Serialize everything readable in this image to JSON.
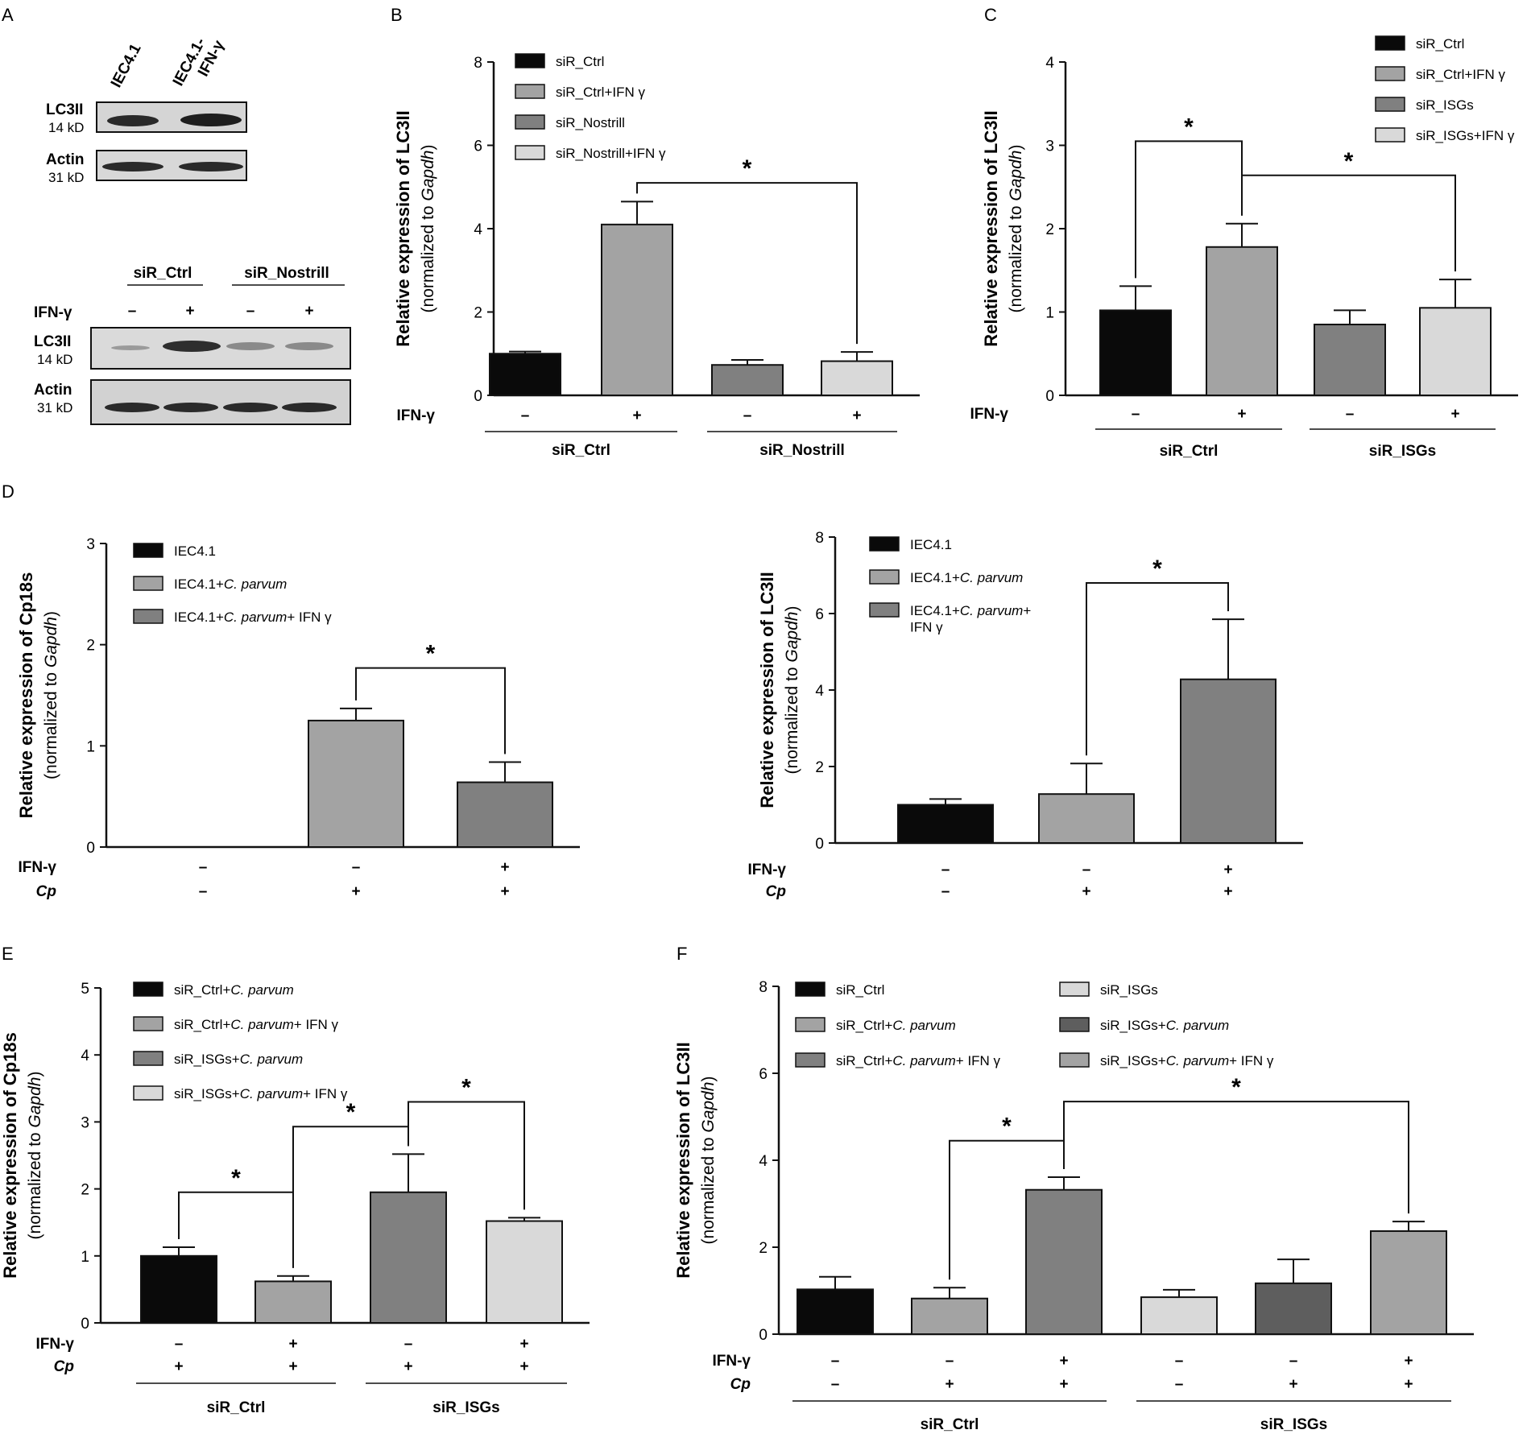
{
  "panel_labels": [
    "A",
    "B",
    "C",
    "D",
    "E",
    "F"
  ],
  "blot_top": {
    "lanes": [
      "IEC4.1",
      "IEC4.1-\nIFN-γ"
    ],
    "rows": [
      {
        "name": "LC3II",
        "size": "14 kD"
      },
      {
        "name": "Actin",
        "size": "31 kD"
      }
    ]
  },
  "blot_bottom": {
    "groups": [
      "siR_Ctrl",
      "siR_Nostrill"
    ],
    "treatment_label": "IFN-γ",
    "treatment": [
      "–",
      "+",
      "–",
      "+"
    ],
    "rows": [
      {
        "name": "LC3II",
        "size": "14 kD"
      },
      {
        "name": "Actin",
        "size": "31 kD"
      }
    ]
  },
  "colors": {
    "black": "#0a0a0a",
    "mid_gray": "#a3a3a3",
    "dark_gray": "#808080",
    "light_gray": "#d9d9d9",
    "darker_gray": "#5e5e5e"
  },
  "chart_data": [
    {
      "id": "B",
      "type": "bar",
      "ylabel": "Relative expression of LC3II",
      "ylabel2_prefix": "(normalized to ",
      "ylabel2_italic": "Gapdh",
      "ylabel2_suffix": ")",
      "ylim": [
        0,
        8
      ],
      "yticks": [
        "0",
        "2",
        "4",
        "6",
        "8"
      ],
      "series": [
        {
          "name": "siR_Ctrl",
          "value": 1.0,
          "error": 0.05,
          "color": "#0a0a0a"
        },
        {
          "name": "siR_Ctrl+IFN γ",
          "value": 4.1,
          "error": 0.55,
          "color": "#a3a3a3"
        },
        {
          "name": "siR_Nostrill",
          "value": 0.73,
          "error": 0.12,
          "color": "#808080"
        },
        {
          "name": "siR_Nostrill+IFN γ",
          "value": 0.82,
          "error": 0.22,
          "color": "#d9d9d9"
        }
      ],
      "rows": [
        {
          "label": "IFN-γ",
          "values": [
            "–",
            "+",
            "–",
            "+"
          ]
        }
      ],
      "groups": [
        {
          "label": "siR_Ctrl",
          "bars": [
            0,
            1
          ]
        },
        {
          "label": "siR_Nostrill",
          "bars": [
            2,
            3
          ]
        }
      ],
      "significance": [
        {
          "from": 1,
          "to": 3,
          "level": 5.1,
          "label": "*"
        }
      ]
    },
    {
      "id": "C",
      "type": "bar",
      "ylabel": "Relative expression of LC3II",
      "ylabel2_prefix": "(normalized to ",
      "ylabel2_italic": "Gapdh",
      "ylabel2_suffix": ")",
      "ylim": [
        0,
        4
      ],
      "yticks": [
        "0",
        "1",
        "2",
        "3",
        "4"
      ],
      "series": [
        {
          "name": "siR_Ctrl",
          "value": 1.02,
          "error": 0.29,
          "color": "#0a0a0a"
        },
        {
          "name": "siR_Ctrl+IFN γ",
          "value": 1.78,
          "error": 0.28,
          "color": "#a3a3a3"
        },
        {
          "name": "siR_ISGs",
          "value": 0.85,
          "error": 0.17,
          "color": "#808080"
        },
        {
          "name": "siR_ISGs+IFN γ",
          "value": 1.05,
          "error": 0.34,
          "color": "#d9d9d9"
        }
      ],
      "rows": [
        {
          "label": "IFN-γ",
          "values": [
            "–",
            "+",
            "–",
            "+"
          ]
        }
      ],
      "groups": [
        {
          "label": "siR_Ctrl",
          "bars": [
            0,
            1
          ]
        },
        {
          "label": "siR_ISGs",
          "bars": [
            2,
            3
          ]
        }
      ],
      "significance": [
        {
          "from": 0,
          "to": 1,
          "level": 3.05,
          "label": "*"
        },
        {
          "from": 1,
          "to": 3,
          "level": 2.64,
          "label": "*"
        }
      ]
    },
    {
      "id": "D1",
      "type": "bar",
      "ylabel": "Relative expression of Cp18s",
      "ylabel2_prefix": "(normalized to ",
      "ylabel2_italic": "Gapdh",
      "ylabel2_suffix": ")",
      "ylim": [
        0,
        3
      ],
      "yticks": [
        "0",
        "1",
        "2",
        "3"
      ],
      "series": [
        {
          "name": "IEC4.1",
          "value": 0,
          "error": 0,
          "color": "#0a0a0a"
        },
        {
          "name": "IEC4.1+C. parvum",
          "value": 1.25,
          "error": 0.12,
          "color": "#a3a3a3"
        },
        {
          "name": "IEC4.1+C. parvum+ IFN γ",
          "value": 0.64,
          "error": 0.2,
          "color": "#808080"
        }
      ],
      "rows": [
        {
          "label": "IFN-γ",
          "values": [
            "–",
            "–",
            "+"
          ]
        },
        {
          "label": "Cp",
          "values": [
            "–",
            "+",
            "+"
          ]
        }
      ],
      "groups": [],
      "significance": [
        {
          "from": 1,
          "to": 2,
          "level": 1.77,
          "label": "*"
        }
      ]
    },
    {
      "id": "D2",
      "type": "bar",
      "ylabel": "Relative expression of LC3II",
      "ylabel2_prefix": "(normalized to ",
      "ylabel2_italic": "Gapdh",
      "ylabel2_suffix": ")",
      "ylim": [
        0,
        8
      ],
      "yticks": [
        "0",
        "2",
        "4",
        "6",
        "8"
      ],
      "series": [
        {
          "name": "IEC4.1",
          "value": 1.0,
          "error": 0.15,
          "color": "#0a0a0a"
        },
        {
          "name": "IEC4.1+C. parvum",
          "value": 1.28,
          "error": 0.8,
          "color": "#a3a3a3"
        },
        {
          "name": "IEC4.1+C. parvum+\nIFN γ",
          "value": 4.28,
          "error": 1.57,
          "color": "#808080"
        }
      ],
      "rows": [
        {
          "label": "IFN-γ",
          "values": [
            "–",
            "–",
            "+"
          ]
        },
        {
          "label": "Cp",
          "values": [
            "–",
            "+",
            "+"
          ]
        }
      ],
      "groups": [],
      "significance": [
        {
          "from": 1,
          "to": 2,
          "level": 6.8,
          "label": "*"
        }
      ]
    },
    {
      "id": "E",
      "type": "bar",
      "ylabel": "Relative expression of Cp18s",
      "ylabel2_prefix": "(normalized to ",
      "ylabel2_italic": "Gapdh",
      "ylabel2_suffix": ")",
      "ylim": [
        0,
        5
      ],
      "yticks": [
        "0",
        "1",
        "2",
        "3",
        "4",
        "5"
      ],
      "series": [
        {
          "name": "siR_Ctrl+C. parvum",
          "value": 1.0,
          "error": 0.13,
          "color": "#0a0a0a"
        },
        {
          "name": "siR_Ctrl+C. parvum+ IFN γ",
          "value": 0.62,
          "error": 0.08,
          "color": "#a3a3a3"
        },
        {
          "name": "siR_ISGs+C. parvum",
          "value": 1.95,
          "error": 0.57,
          "color": "#808080"
        },
        {
          "name": "siR_ISGs+C. parvum+ IFN γ",
          "value": 1.52,
          "error": 0.05,
          "color": "#d9d9d9"
        }
      ],
      "rows": [
        {
          "label": "IFN-γ",
          "values": [
            "–",
            "+",
            "–",
            "+"
          ]
        },
        {
          "label": "Cp",
          "values": [
            "+",
            "+",
            "+",
            "+"
          ]
        }
      ],
      "groups": [
        {
          "label": "siR_Ctrl",
          "bars": [
            0,
            1
          ]
        },
        {
          "label": "siR_ISGs",
          "bars": [
            2,
            3
          ]
        }
      ],
      "significance": [
        {
          "from": 0,
          "to": 1,
          "level": 1.95,
          "label": "*"
        },
        {
          "from": 1,
          "to": 2,
          "level": 2.93,
          "label": "*"
        },
        {
          "from": 2,
          "to": 3,
          "level": 3.3,
          "label": "*"
        }
      ]
    },
    {
      "id": "F",
      "type": "bar",
      "ylabel": "Relative expression of LC3II",
      "ylabel2_prefix": "(normalized to ",
      "ylabel2_italic": "Gapdh",
      "ylabel2_suffix": ")",
      "ylim": [
        0,
        8
      ],
      "yticks": [
        "0",
        "2",
        "4",
        "6",
        "8"
      ],
      "series": [
        {
          "name": "siR_Ctrl",
          "value": 1.03,
          "error": 0.29,
          "color": "#0a0a0a"
        },
        {
          "name": "siR_Ctrl+C. parvum",
          "value": 0.82,
          "error": 0.25,
          "color": "#a3a3a3"
        },
        {
          "name": "siR_Ctrl+C. parvum+ IFN γ",
          "value": 3.32,
          "error": 0.29,
          "color": "#808080"
        },
        {
          "name": "siR_ISGs",
          "value": 0.85,
          "error": 0.17,
          "color": "#d9d9d9"
        },
        {
          "name": "siR_ISGs+C. parvum",
          "value": 1.17,
          "error": 0.55,
          "color": "#5e5e5e"
        },
        {
          "name": "siR_ISGs+C. parvum+ IFN γ",
          "value": 2.37,
          "error": 0.22,
          "color": "#a3a3a3"
        }
      ],
      "rows": [
        {
          "label": "IFN-γ",
          "values": [
            "–",
            "–",
            "+",
            "–",
            "–",
            "+"
          ]
        },
        {
          "label": "Cp",
          "values": [
            "–",
            "+",
            "+",
            "–",
            "+",
            "+"
          ]
        }
      ],
      "groups": [
        {
          "label": "siR_Ctrl",
          "bars": [
            0,
            1,
            2
          ]
        },
        {
          "label": "siR_ISGs",
          "bars": [
            3,
            4,
            5
          ]
        }
      ],
      "significance": [
        {
          "from": 1,
          "to": 2,
          "level": 4.45,
          "label": "*"
        },
        {
          "from": 2,
          "to": 5,
          "level": 5.35,
          "label": "*"
        }
      ]
    }
  ]
}
